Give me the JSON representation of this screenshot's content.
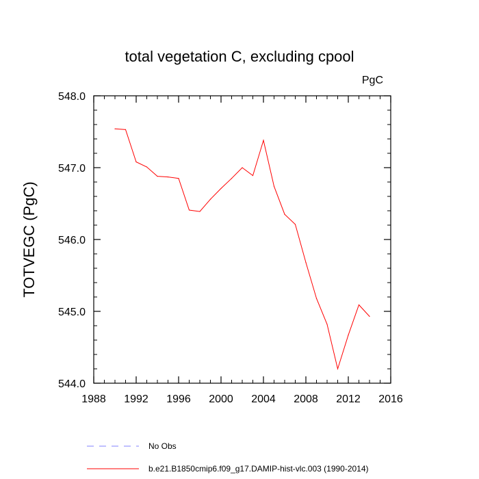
{
  "chart_data": {
    "type": "line",
    "title": "total vegetation C, excluding cpool",
    "units": "PgC",
    "xlabel": "",
    "ylabel": "TOTVEGC  (PgC)",
    "xlim": [
      1988,
      2016
    ],
    "ylim": [
      544.0,
      548.0
    ],
    "x_ticks": [
      1988,
      1992,
      1996,
      2000,
      2004,
      2008,
      2012,
      2016
    ],
    "x_tick_labels": [
      "1988",
      "1992",
      "1996",
      "2000",
      "2004",
      "2008",
      "2012",
      "2016"
    ],
    "x_minor_step": 1,
    "y_ticks": [
      544.0,
      545.0,
      546.0,
      547.0,
      548.0
    ],
    "y_tick_labels": [
      "544.0",
      "545.0",
      "546.0",
      "547.0",
      "548.0"
    ],
    "y_minor_step": 0.2,
    "grid": false,
    "legend": [
      {
        "label": "No Obs",
        "color": "#8080ff",
        "style": "dashed"
      },
      {
        "label": "b.e21.B1850cmip6.f09_g17.DAMIP-hist-vlc.003 (1990-2014)",
        "color": "#ff0000",
        "style": "solid"
      }
    ],
    "series": [
      {
        "name": "b.e21.B1850cmip6.f09_g17.DAMIP-hist-vlc.003 (1990-2014)",
        "color": "#ff0000",
        "x": [
          1990,
          1991,
          1992,
          1993,
          1994,
          1995,
          1996,
          1997,
          1998,
          1999,
          2000,
          2001,
          2002,
          2003,
          2004,
          2005,
          2006,
          2007,
          2008,
          2009,
          2010,
          2011,
          2012,
          2013,
          2014
        ],
        "values": [
          547.54,
          547.53,
          547.08,
          547.01,
          546.88,
          546.87,
          546.85,
          546.41,
          546.39,
          546.56,
          546.71,
          546.85,
          547.0,
          546.89,
          547.38,
          546.74,
          546.35,
          546.21,
          545.68,
          545.18,
          544.82,
          544.2,
          544.67,
          545.09,
          544.93
        ]
      }
    ]
  }
}
